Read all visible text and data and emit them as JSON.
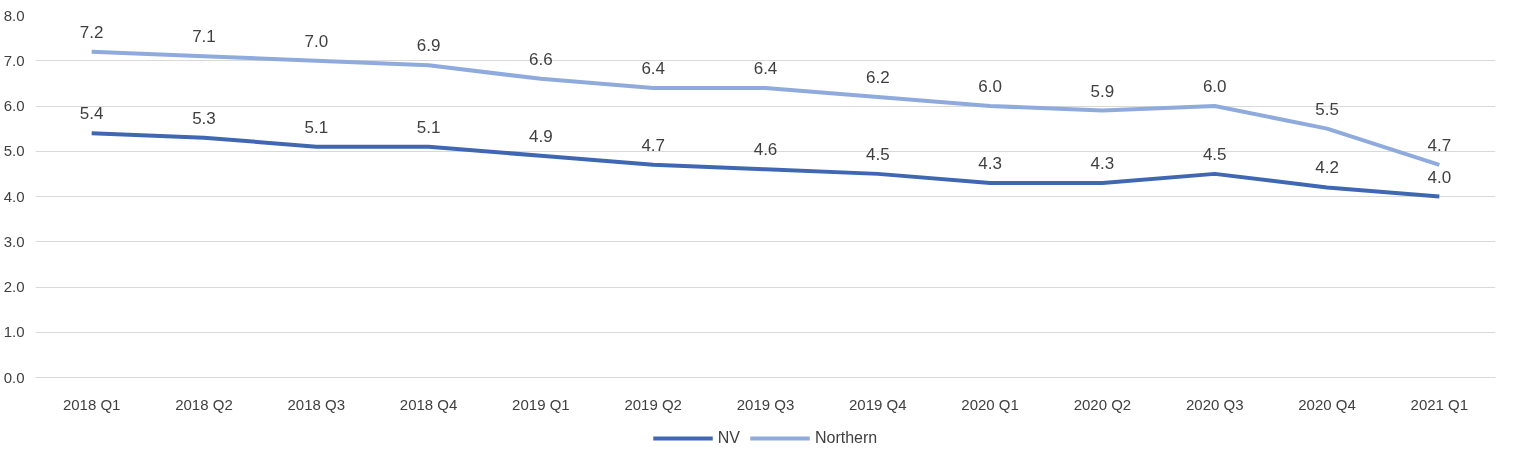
{
  "chart_data": {
    "type": "line",
    "categories": [
      "2018 Q1",
      "2018 Q2",
      "2018 Q3",
      "2018 Q4",
      "2019 Q1",
      "2019 Q2",
      "2019 Q3",
      "2019 Q4",
      "2020 Q1",
      "2020 Q2",
      "2020 Q3",
      "2020 Q4",
      "2021 Q1"
    ],
    "series": [
      {
        "name": "NV",
        "color": "#4068b2",
        "values": [
          5.4,
          5.3,
          5.1,
          5.1,
          4.9,
          4.7,
          4.6,
          4.5,
          4.3,
          4.3,
          4.5,
          4.2,
          4.0
        ],
        "value_labels": [
          "5.4",
          "5.3",
          "5.1",
          "5.1",
          "4.9",
          "4.7",
          "4.6",
          "4.5",
          "4.3",
          "4.3",
          "4.5",
          "4.2",
          "4.0"
        ]
      },
      {
        "name": "Northern",
        "color": "#8faadc",
        "values": [
          7.2,
          7.1,
          7.0,
          6.9,
          6.6,
          6.4,
          6.4,
          6.2,
          6.0,
          5.9,
          6.0,
          5.5,
          4.7
        ],
        "value_labels": [
          "7.2",
          "7.1",
          "7.0",
          "6.9",
          "6.6",
          "6.4",
          "6.4",
          "6.2",
          "6.0",
          "5.9",
          "6.0",
          "5.5",
          "4.7"
        ]
      }
    ],
    "ylim": [
      0,
      8
    ],
    "yticks": [
      {
        "value": 0,
        "label": "0.0"
      },
      {
        "value": 1,
        "label": "1.0"
      },
      {
        "value": 2,
        "label": "2.0"
      },
      {
        "value": 3,
        "label": "3.0"
      },
      {
        "value": 4,
        "label": "4.0"
      },
      {
        "value": 5,
        "label": "5.0"
      },
      {
        "value": 6,
        "label": "6.0"
      },
      {
        "value": 7,
        "label": "7.0"
      },
      {
        "value": 8,
        "label": "8.0"
      }
    ],
    "grid": "y",
    "legend": "bottom",
    "marker": "none",
    "line_style": "solid"
  }
}
